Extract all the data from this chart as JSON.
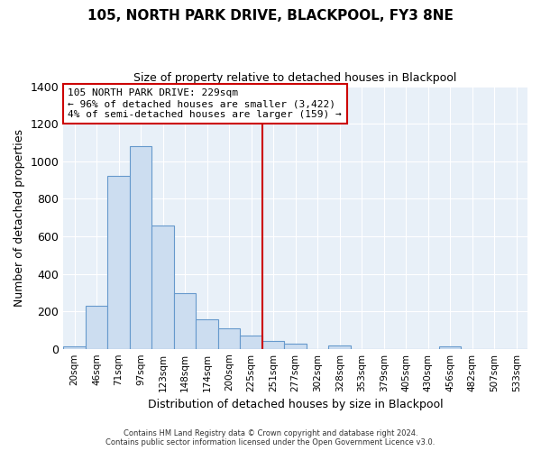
{
  "title": "105, NORTH PARK DRIVE, BLACKPOOL, FY3 8NE",
  "subtitle": "Size of property relative to detached houses in Blackpool",
  "xlabel": "Distribution of detached houses by size in Blackpool",
  "ylabel": "Number of detached properties",
  "bar_labels": [
    "20sqm",
    "46sqm",
    "71sqm",
    "97sqm",
    "123sqm",
    "148sqm",
    "174sqm",
    "200sqm",
    "225sqm",
    "251sqm",
    "277sqm",
    "302sqm",
    "328sqm",
    "353sqm",
    "379sqm",
    "405sqm",
    "430sqm",
    "456sqm",
    "482sqm",
    "507sqm",
    "533sqm"
  ],
  "bar_values": [
    15,
    228,
    920,
    1080,
    655,
    295,
    158,
    107,
    72,
    42,
    25,
    0,
    18,
    0,
    0,
    0,
    0,
    15,
    0,
    0,
    0
  ],
  "bar_color": "#ccddf0",
  "bar_edge_color": "#6699cc",
  "vline_x_index": 8,
  "vline_color": "#cc0000",
  "annotation_title": "105 NORTH PARK DRIVE: 229sqm",
  "annotation_line1": "← 96% of detached houses are smaller (3,422)",
  "annotation_line2": "4% of semi-detached houses are larger (159) →",
  "annotation_box_color": "#ffffff",
  "annotation_box_edge": "#cc0000",
  "ylim": [
    0,
    1400
  ],
  "yticks": [
    0,
    200,
    400,
    600,
    800,
    1000,
    1200,
    1400
  ],
  "footer_line1": "Contains HM Land Registry data © Crown copyright and database right 2024.",
  "footer_line2": "Contains public sector information licensed under the Open Government Licence v3.0.",
  "background_color": "#ffffff",
  "plot_bg_color": "#e8f0f8",
  "grid_color": "#ffffff"
}
